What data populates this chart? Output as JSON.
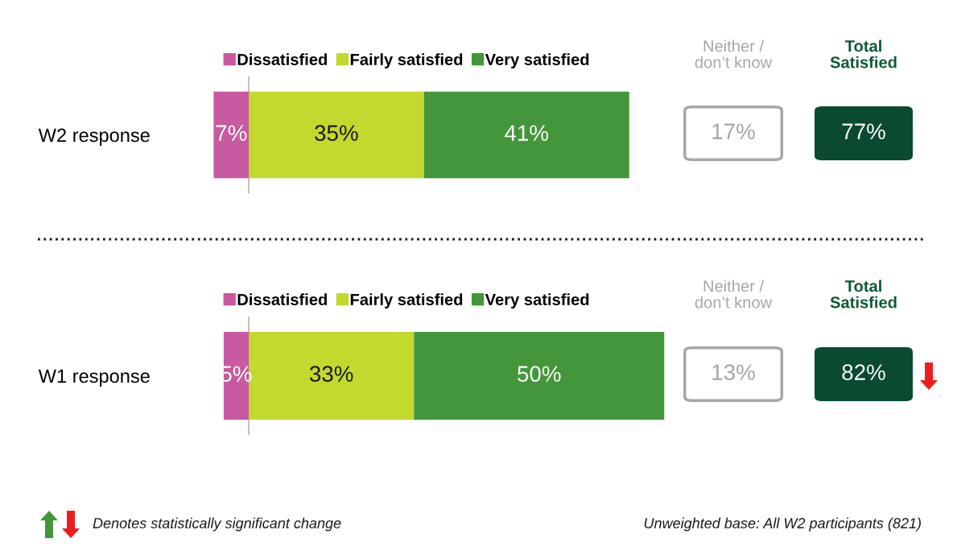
{
  "chart_data": [
    {
      "type": "bar",
      "orientation": "horizontal",
      "stacked": true,
      "categories": [
        "W2 response"
      ],
      "legend": "top",
      "series": [
        {
          "name": "Dissatisfied",
          "color": "#c85aa1",
          "values": [
            7
          ],
          "value_labels": [
            "7%"
          ]
        },
        {
          "name": "Fairly satisfied",
          "color": "#c2d92e",
          "values": [
            35
          ],
          "value_labels": [
            "35%"
          ]
        },
        {
          "name": "Very satisfied",
          "color": "#43973a",
          "values": [
            41
          ],
          "value_labels": [
            "41%"
          ]
        }
      ],
      "ref_lines": [
        {
          "axis": "x",
          "value": 7,
          "color": "#a6a6a6"
        }
      ],
      "annotations": [
        "Neither /\ndon’t know",
        "17%",
        "Total\nSatisfied",
        "77%"
      ]
    },
    {
      "type": "bar",
      "orientation": "horizontal",
      "stacked": true,
      "categories": [
        "W1 response"
      ],
      "legend": "top",
      "series": [
        {
          "name": "Dissatisfied",
          "color": "#c85aa1",
          "values": [
            5
          ],
          "value_labels": [
            "5%"
          ]
        },
        {
          "name": "Fairly satisfied",
          "color": "#c2d92e",
          "values": [
            33
          ],
          "value_labels": [
            "33%"
          ]
        },
        {
          "name": "Very satisfied",
          "color": "#43973a",
          "values": [
            50
          ],
          "value_labels": [
            "50%"
          ]
        }
      ],
      "ref_lines": [
        {
          "axis": "x",
          "value": 5,
          "color": "#a6a6a6"
        }
      ],
      "annotations": [
        "Neither /\ndon’t know",
        "13%",
        "Total\nSatisfied",
        "82%"
      ]
    },
    {
      "type": "other",
      "annotations": [
        "Denotes statistically significant change",
        "Unweighted base: All W2 participants (821)"
      ]
    }
  ]
}
